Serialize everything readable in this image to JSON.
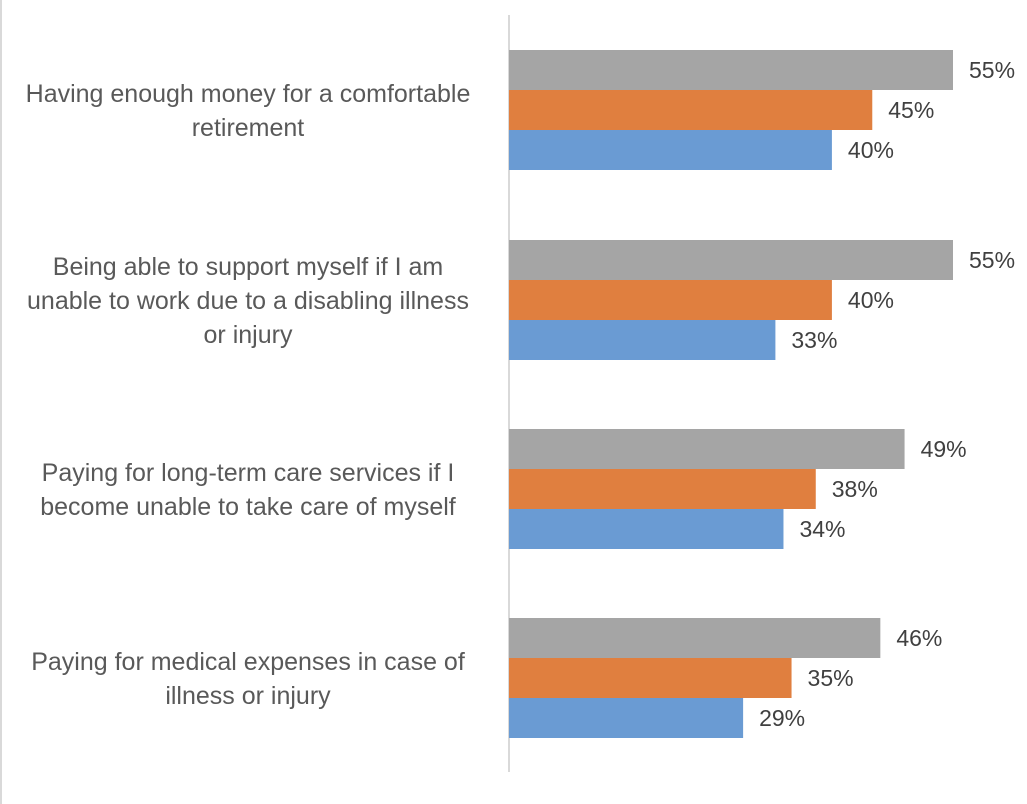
{
  "chart_data": {
    "type": "bar",
    "orientation": "horizontal",
    "title": "",
    "xlabel": "",
    "ylabel": "",
    "xlim": [
      0,
      55
    ],
    "grid": false,
    "legend": "none",
    "categories": [
      [
        "Having enough money for a comfortable",
        "retirement"
      ],
      [
        "Being able to support myself if I am",
        "unable to work due to a disabling illness",
        "or injury"
      ],
      [
        "Paying for long-term care services if I",
        "become unable to take care of myself"
      ],
      [
        "Paying for medical expenses in case of",
        "illness or injury"
      ]
    ],
    "series": [
      {
        "name": "gray",
        "color": "#a5a5a5",
        "values": [
          55,
          55,
          49,
          46
        ],
        "labels": [
          "55%",
          "55%",
          "49%",
          "46%"
        ]
      },
      {
        "name": "orange",
        "color": "#e07f3f",
        "values": [
          45,
          40,
          38,
          35
        ],
        "labels": [
          "45%",
          "40%",
          "38%",
          "35%"
        ]
      },
      {
        "name": "blue",
        "color": "#6a9bd3",
        "values": [
          40,
          33,
          34,
          29
        ],
        "labels": [
          "40%",
          "33%",
          "34%",
          "29%"
        ]
      }
    ]
  }
}
